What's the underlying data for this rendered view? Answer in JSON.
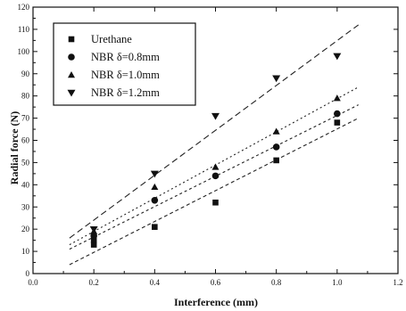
{
  "chart_data": {
    "type": "scatter",
    "xlabel": "Interference (mm)",
    "ylabel": "Radial force (N)",
    "xlim": [
      0.0,
      1.2
    ],
    "ylim": [
      0,
      120
    ],
    "x_ticks": [
      "0.0",
      "0.2",
      "0.4",
      "0.6",
      "0.8",
      "1.0",
      "1.2"
    ],
    "y_ticks": [
      "0",
      "10",
      "20",
      "30",
      "40",
      "50",
      "60",
      "70",
      "80",
      "90",
      "100",
      "110",
      "120"
    ],
    "legend_position": "top-left",
    "grid": false,
    "series": [
      {
        "name": "Urethane",
        "marker": "square",
        "x": [
          0.2,
          0.2,
          0.4,
          0.6,
          0.8,
          1.0
        ],
        "y": [
          13,
          15,
          21,
          32,
          51,
          68
        ],
        "fit": {
          "x": [
            0.12,
            1.07
          ],
          "y": [
            4,
            70
          ],
          "dash": "4,3"
        }
      },
      {
        "name": "NBR δ=0.8mm",
        "marker": "circle",
        "x": [
          0.2,
          0.4,
          0.6,
          0.8,
          1.0
        ],
        "y": [
          17,
          33,
          44,
          57,
          72
        ],
        "fit": {
          "x": [
            0.12,
            1.07
          ],
          "y": [
            11,
            76
          ],
          "dash": "3,3"
        }
      },
      {
        "name": "NBR δ=1.0mm",
        "marker": "triangle-up",
        "x": [
          0.2,
          0.4,
          0.6,
          0.8,
          1.0
        ],
        "y": [
          19,
          39,
          48,
          64,
          79
        ],
        "fit": {
          "x": [
            0.12,
            1.07
          ],
          "y": [
            13,
            84
          ],
          "dash": "2,3"
        }
      },
      {
        "name": "NBR δ=1.2mm",
        "marker": "triangle-down",
        "x": [
          0.2,
          0.4,
          0.6,
          0.8,
          1.0
        ],
        "y": [
          20,
          45,
          71,
          88,
          98
        ],
        "fit": {
          "x": [
            0.12,
            1.07
          ],
          "y": [
            16,
            112
          ],
          "dash": "7,4"
        }
      }
    ]
  }
}
